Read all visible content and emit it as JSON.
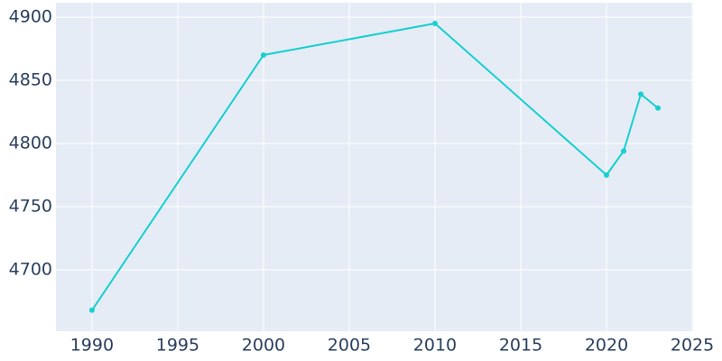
{
  "chart_data": {
    "type": "line",
    "x": [
      1990,
      2000,
      2010,
      2020,
      2021,
      2022,
      2023
    ],
    "series": [
      {
        "color": "#17cfd0",
        "values": [
          4668,
          4870,
          4895,
          4775,
          4794,
          4839,
          4828
        ]
      }
    ],
    "xlim": [
      1987.9,
      2025.05
    ],
    "xticks": [
      1990,
      1995,
      2000,
      2005,
      2010,
      2015,
      2020,
      2025
    ],
    "ylim": [
      4651.4,
      4911.4
    ],
    "yticks": [
      4700,
      4750,
      4800,
      4850,
      4900
    ],
    "grid": true,
    "background": "#e5ecf6"
  }
}
